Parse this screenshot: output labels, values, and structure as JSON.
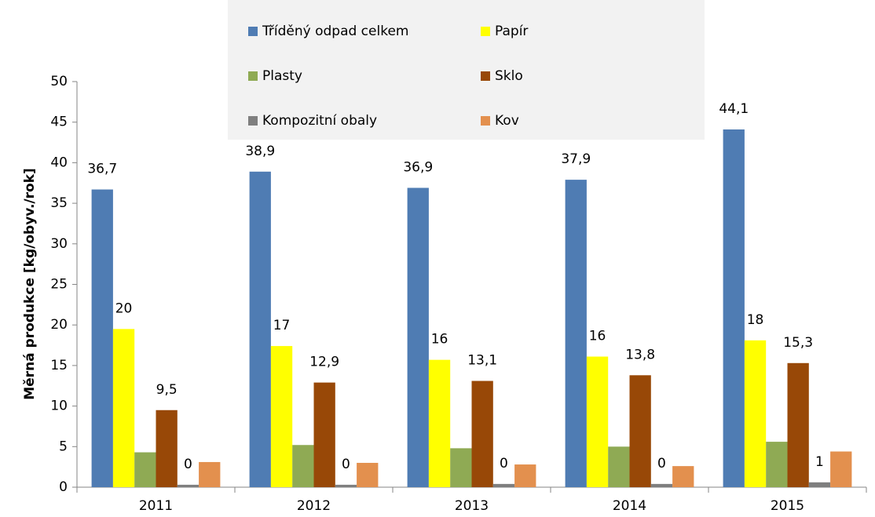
{
  "chart_data": {
    "type": "bar",
    "y_label": "Měrná produkce [kg/obyv./rok]",
    "categories": [
      "2011",
      "2012",
      "2013",
      "2014",
      "2015"
    ],
    "ylim": [
      0,
      50
    ],
    "yticks": [
      0,
      5,
      10,
      15,
      20,
      25,
      30,
      35,
      40,
      45,
      50
    ],
    "series": [
      {
        "name": "Tříděný odpad celkem",
        "color": "#4F7CB3",
        "values": [
          36.7,
          38.9,
          36.9,
          37.9,
          44.1
        ],
        "value_labels": [
          "36,7",
          "38,9",
          "36,9",
          "37,9",
          "44,1"
        ]
      },
      {
        "name": "Papír",
        "color": "#FFFF00",
        "values": [
          19.5,
          17.4,
          15.7,
          16.1,
          18.1
        ],
        "value_labels": [
          "20",
          "17",
          "16",
          "16",
          "18"
        ]
      },
      {
        "name": "Plasty",
        "color": "#8FAA54",
        "values": [
          4.3,
          5.2,
          4.8,
          5.0,
          5.6
        ]
      },
      {
        "name": "Sklo",
        "color": "#984807",
        "values": [
          9.5,
          12.9,
          13.1,
          13.8,
          15.3
        ],
        "value_labels": [
          "9,5",
          "12,9",
          "13,1",
          "13,8",
          "15,3"
        ]
      },
      {
        "name": "Kompozitní obaly",
        "color": "#7F7F7F",
        "values": [
          0.3,
          0.3,
          0.4,
          0.4,
          0.6
        ],
        "value_labels": [
          "0",
          "0",
          "0",
          "0",
          "1"
        ]
      },
      {
        "name": "Kov",
        "color": "#E3904E",
        "values": [
          3.1,
          3.0,
          2.8,
          2.6,
          4.4
        ]
      }
    ],
    "legend": "top-center",
    "grid": false
  }
}
